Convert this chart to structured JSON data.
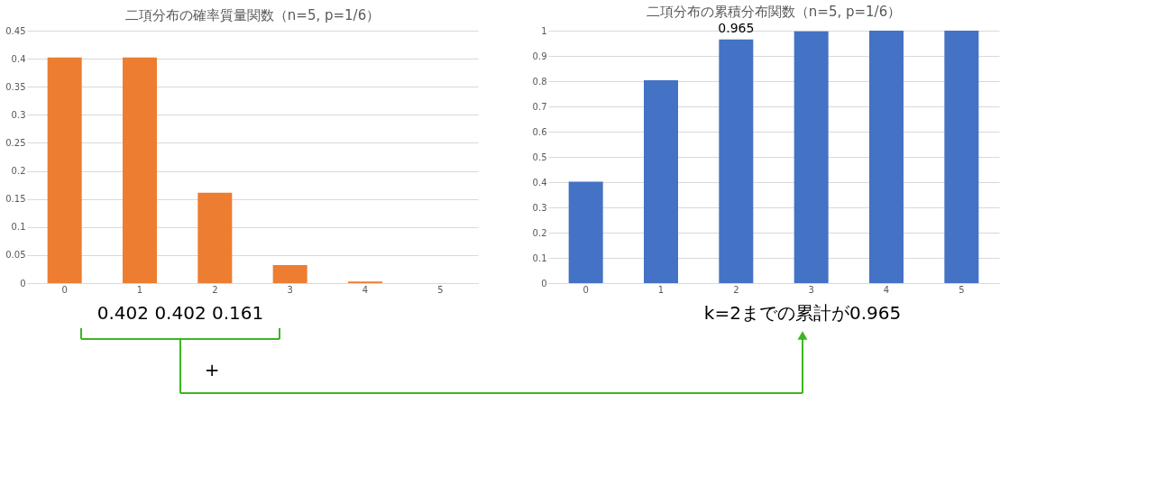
{
  "chart_data": [
    {
      "type": "bar",
      "title": "二項分布の確率質量関数（n=5, p=1/6）",
      "categories": [
        "0",
        "1",
        "2",
        "3",
        "4",
        "5"
      ],
      "values": [
        0.402,
        0.402,
        0.161,
        0.032,
        0.003,
        0.0
      ],
      "color": "#ed7d31",
      "ylim": [
        0,
        0.45
      ],
      "yticks": [
        0,
        0.05,
        0.1,
        0.15,
        0.2,
        0.25,
        0.3,
        0.35,
        0.4,
        0.45
      ],
      "grid": "y",
      "annotations": [
        "0.402   0.402   0.161",
        "+"
      ]
    },
    {
      "type": "bar",
      "title": "二項分布の累積分布関数（n=5, p=1/6）",
      "categories": [
        "0",
        "1",
        "2",
        "3",
        "4",
        "5"
      ],
      "values": [
        0.402,
        0.804,
        0.965,
        0.997,
        1.0,
        1.0
      ],
      "color": "#4472c4",
      "ylim": [
        0,
        1
      ],
      "yticks": [
        0,
        0.1,
        0.2,
        0.3,
        0.4,
        0.5,
        0.6,
        0.7,
        0.8,
        0.9,
        1
      ],
      "grid": "y",
      "value_labels": [
        null,
        null,
        "0.965",
        null,
        null,
        null
      ],
      "annotations": [
        "k=2までの累計が0.965"
      ]
    }
  ]
}
